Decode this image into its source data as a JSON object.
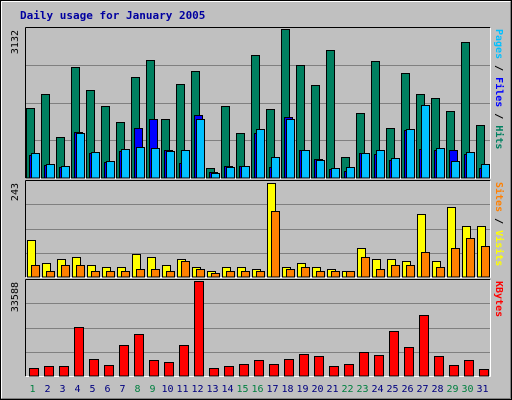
{
  "chart_data": {
    "type": "bar",
    "title": "Daily usage for January 2005",
    "categories": [
      "1",
      "2",
      "3",
      "4",
      "5",
      "6",
      "7",
      "8",
      "9",
      "10",
      "11",
      "12",
      "13",
      "14",
      "15",
      "16",
      "17",
      "18",
      "19",
      "20",
      "21",
      "22",
      "23",
      "24",
      "25",
      "26",
      "27",
      "28",
      "29",
      "30",
      "31"
    ],
    "weekend_days": [
      "1",
      "8",
      "9",
      "15",
      "16",
      "22",
      "23",
      "29",
      "30"
    ],
    "panels": [
      {
        "name": "hits-files-pages",
        "ymax_label": "3132",
        "ylim": [
          0,
          3132
        ],
        "legend": [
          {
            "text": "Pages",
            "color": "#00c0ff"
          },
          {
            "text": " / ",
            "color": "#000000"
          },
          {
            "text": "Files",
            "color": "#0000ff"
          },
          {
            "text": " / ",
            "color": "#000000"
          },
          {
            "text": "Hits",
            "color": "#008060"
          }
        ],
        "series": [
          {
            "name": "Hits",
            "color": "#008060",
            "values": [
              1470,
              1770,
              860,
              2330,
              1840,
              1520,
              1170,
              2130,
              2480,
              1240,
              1970,
              2240,
              220,
              1510,
              950,
              2590,
              1440,
              3130,
              2370,
              1960,
              2690,
              450,
              1360,
              2460,
              1050,
              2210,
              1760,
              1690,
              1410,
              2860,
              1120
            ]
          },
          {
            "name": "Files",
            "color": "#0000ff",
            "values": [
              480,
              270,
              240,
              970,
              520,
              330,
              560,
              1060,
              1250,
              590,
              320,
              1330,
              120,
              260,
              250,
              950,
              240,
              1290,
              580,
              400,
              190,
              150,
              520,
              510,
              380,
              1010,
              600,
              590,
              580,
              500,
              200
            ]
          },
          {
            "name": "Pages",
            "color": "#00c0ff",
            "values": [
              520,
              290,
              250,
              940,
              550,
              350,
              620,
              650,
              640,
              560,
              590,
              1240,
              110,
              230,
              250,
              1020,
              450,
              1230,
              590,
              380,
              220,
              240,
              530,
              580,
              420,
              1020,
              1540,
              630,
              350,
              540,
              300
            ]
          }
        ]
      },
      {
        "name": "visits-sites",
        "ymax_label": "243",
        "ylim": [
          0,
          243
        ],
        "legend": [
          {
            "text": "Sites",
            "color": "#ff8000"
          },
          {
            "text": " / ",
            "color": "#000000"
          },
          {
            "text": "Visits",
            "color": "#ffff00"
          }
        ],
        "series": [
          {
            "name": "Visits",
            "color": "#ffff00",
            "values": [
              95,
              35,
              45,
              50,
              30,
              25,
              25,
              60,
              50,
              30,
              45,
              25,
              15,
              25,
              25,
              20,
              240,
              25,
              35,
              25,
              20,
              15,
              75,
              45,
              45,
              40,
              160,
              40,
              180,
              130,
              130
            ]
          },
          {
            "name": "Sites",
            "color": "#ff8000",
            "values": [
              30,
              15,
              30,
              30,
              15,
              15,
              15,
              20,
              20,
              15,
              40,
              20,
              10,
              15,
              15,
              15,
              170,
              20,
              25,
              15,
              15,
              15,
              50,
              20,
              30,
              30,
              65,
              25,
              75,
              100,
              80
            ]
          }
        ]
      },
      {
        "name": "kbytes",
        "ymax_label": "33588",
        "ylim": [
          0,
          33588
        ],
        "legend": [
          {
            "text": "KBytes",
            "color": "#ff0000"
          }
        ],
        "series": [
          {
            "name": "KBytes",
            "color": "#ff0000",
            "values": [
              2700,
              3400,
              3400,
              17500,
              6100,
              3900,
              11000,
              15000,
              5800,
              4800,
              11000,
              33588,
              2700,
              3700,
              4300,
              5500,
              4300,
              6100,
              7900,
              7000,
              3400,
              4300,
              8500,
              7300,
              15900,
              10200,
              21500,
              7000,
              3800,
              5500,
              2400
            ]
          }
        ]
      }
    ]
  }
}
